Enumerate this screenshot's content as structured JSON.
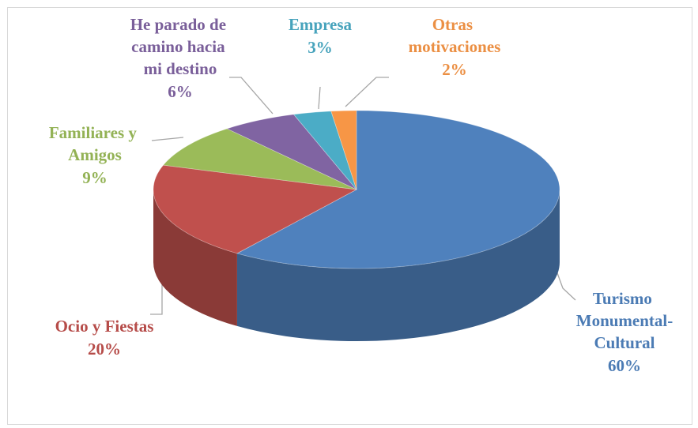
{
  "chart_data": {
    "type": "pie3d",
    "categories": [
      "Turismo Monumental-Cultural",
      "Ocio y Fiestas",
      "Familiares y Amigos",
      "He parado de camino hacia mi destino",
      "Empresa",
      "Otras motivaciones"
    ],
    "values": [
      60,
      20,
      9,
      6,
      3,
      2
    ],
    "value_labels": [
      "60%",
      "20%",
      "9%",
      "6%",
      "3%",
      "2%"
    ],
    "colors": [
      "#4f81bd",
      "#c0504d",
      "#9bbb59",
      "#8064a2",
      "#4bacc6",
      "#f79646"
    ]
  }
}
